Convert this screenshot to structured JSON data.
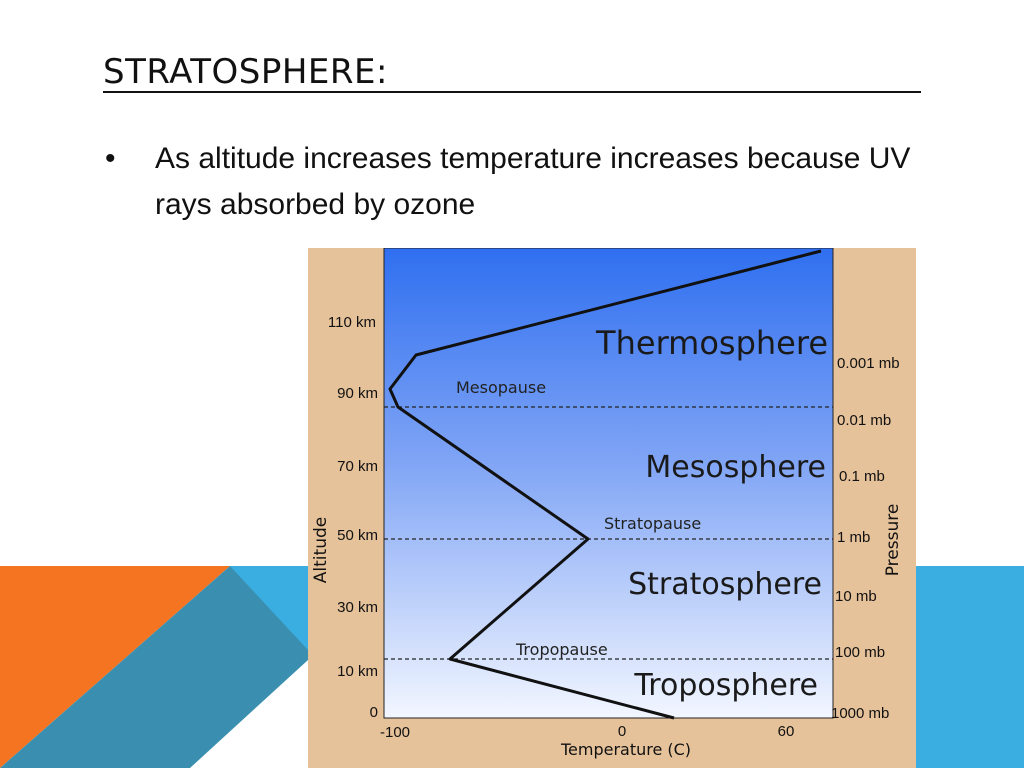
{
  "slide": {
    "title": "STRATOSPHERE:",
    "bullet_marker": "•",
    "bullet_text": "As altitude increases temperature increases because UV rays absorbed by ozone"
  },
  "colors": {
    "orange": "#f47421",
    "teal": "#3a8fb0",
    "sky_blue": "#3aaee0",
    "panel_tan": "#e6c29a",
    "atmosphere_top": "#2f6ff0",
    "atmosphere_bottom": "#f2f6ff"
  },
  "diagram": {
    "layers": {
      "thermosphere": "Thermosphere",
      "mesosphere": "Mesosphere",
      "stratosphere": "Stratosphere",
      "troposphere": "Troposphere"
    },
    "boundaries": {
      "mesopause": "Mesopause",
      "stratopause": "Stratopause",
      "tropopause": "Tropopause"
    },
    "altitude_axis_label": "Altitude",
    "altitude_ticks": [
      "110 km",
      "90 km",
      "70 km",
      "50 km",
      "30 km",
      "10 km",
      "0"
    ],
    "pressure_axis_label": "Pressure",
    "pressure_ticks": [
      "0.001 mb",
      "0.01 mb",
      "0.1 mb",
      "1 mb",
      "10 mb",
      "100 mb",
      "1000 mb"
    ],
    "temperature_axis_label": "Temperature (C)",
    "temperature_ticks": [
      "-100",
      "0",
      "60"
    ]
  }
}
